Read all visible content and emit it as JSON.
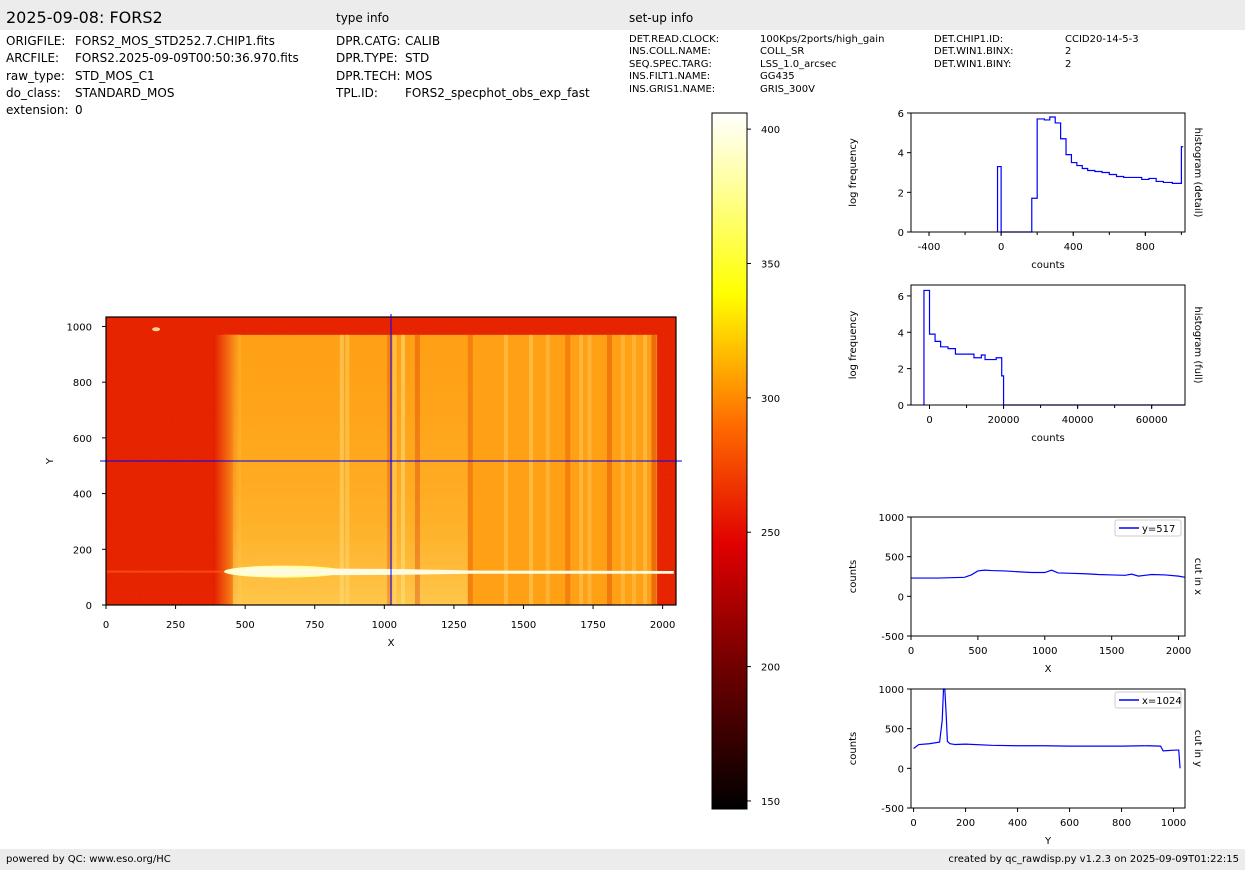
{
  "header": {
    "title": "2025-09-08: FORS2",
    "type_info_label": "type info",
    "setup_info_label": "set-up info"
  },
  "file_info": [
    {
      "key": "ORIGFILE:",
      "value": "FORS2_MOS_STD252.7.CHIP1.fits"
    },
    {
      "key": "ARCFILE:",
      "value": "FORS2.2025-09-09T00:50:36.970.fits"
    },
    {
      "key": "raw_type:",
      "value": "STD_MOS_C1"
    },
    {
      "key": "do_class:",
      "value": "STANDARD_MOS"
    },
    {
      "key": "extension:",
      "value": "0"
    }
  ],
  "type_info": [
    {
      "key": "DPR.CATG:",
      "value": "CALIB"
    },
    {
      "key": "DPR.TYPE:",
      "value": "STD"
    },
    {
      "key": "DPR.TECH:",
      "value": "MOS"
    },
    {
      "key": "TPL.ID:",
      "value": "FORS2_specphot_obs_exp_fast"
    }
  ],
  "setup_info_left": [
    {
      "key": "DET.READ.CLOCK:",
      "value": "100Kps/2ports/high_gain"
    },
    {
      "key": "INS.COLL.NAME:",
      "value": "COLL_SR"
    },
    {
      "key": "SEQ.SPEC.TARG:",
      "value": "LSS_1.0_arcsec"
    },
    {
      "key": "INS.FILT1.NAME:",
      "value": "GG435"
    },
    {
      "key": "INS.GRIS1.NAME:",
      "value": "GRIS_300V"
    }
  ],
  "setup_info_right": [
    {
      "key": "DET.CHIP1.ID:",
      "value": "CCID20-14-5-3"
    },
    {
      "key": "DET.WIN1.BINX:",
      "value": "2"
    },
    {
      "key": "DET.WIN1.BINY:",
      "value": "2"
    }
  ],
  "footer": {
    "left": "powered by QC: www.eso.org/HC",
    "right": "created by qc_rawdisp.py v1.2.3 on 2025-09-09T01:22:15"
  },
  "colors": {
    "line": "#0000ff",
    "bar_bg": "#ececec",
    "image_bg": "#e41a00",
    "image_bright": "#ffd040"
  },
  "chart_data": [
    {
      "type": "heatmap",
      "id": "image",
      "xlabel": "X",
      "ylabel": "Y",
      "xlim": [
        0,
        2048
      ],
      "ylim": [
        0,
        1034
      ],
      "xticks": [
        0,
        250,
        500,
        750,
        1000,
        1250,
        1500,
        1750,
        2000
      ],
      "yticks": [
        0,
        200,
        400,
        600,
        800,
        1000
      ],
      "cut_x": 1024,
      "cut_y": 517,
      "colormap": "hot",
      "colorbar": {
        "ticks": [
          150,
          200,
          250,
          300,
          350,
          400
        ],
        "range": [
          147,
          406
        ]
      }
    },
    {
      "type": "line",
      "id": "hist_detail",
      "xlabel": "counts",
      "ylabel": "log frequency",
      "side_label": "histogram (detail)",
      "xlim": [
        -500,
        1020
      ],
      "ylim": [
        0,
        6
      ],
      "xticks": [
        -400,
        0,
        400,
        800
      ],
      "yticks": [
        0,
        2,
        4,
        6
      ],
      "x": [
        -20,
        0,
        170,
        200,
        240,
        270,
        300,
        330,
        360,
        390,
        420,
        450,
        480,
        520,
        560,
        600,
        640,
        680,
        720,
        780,
        820,
        860,
        900,
        950,
        1000,
        1010
      ],
      "y": [
        3.3,
        0,
        1.7,
        5.7,
        5.65,
        5.8,
        5.5,
        4.7,
        3.9,
        3.5,
        3.35,
        3.2,
        3.1,
        3.05,
        3.0,
        2.9,
        2.8,
        2.75,
        2.75,
        2.65,
        2.7,
        2.55,
        2.5,
        2.45,
        4.3,
        4.3
      ]
    },
    {
      "type": "line",
      "id": "hist_full",
      "xlabel": "counts",
      "ylabel": "log frequency",
      "side_label": "histogram (full)",
      "xlim": [
        -5000,
        69000
      ],
      "ylim": [
        0,
        6.6
      ],
      "xticks": [
        0,
        20000,
        40000,
        60000
      ],
      "yticks": [
        0,
        2,
        4,
        6
      ],
      "x": [
        -1500,
        0,
        1500,
        3000,
        5000,
        7000,
        9000,
        12000,
        14000,
        15000,
        17000,
        18000,
        19500,
        20000,
        69000
      ],
      "y": [
        6.3,
        3.9,
        3.5,
        3.2,
        3.1,
        2.8,
        2.8,
        2.6,
        2.75,
        2.5,
        2.5,
        2.6,
        1.6,
        0,
        0
      ]
    },
    {
      "type": "line",
      "id": "cut_x",
      "xlabel": "X",
      "ylabel": "counts",
      "side_label": "cut in x",
      "legend": "y=517",
      "xlim": [
        0,
        2048
      ],
      "ylim": [
        -500,
        1000
      ],
      "xticks": [
        0,
        500,
        1000,
        1500,
        2000
      ],
      "yticks": [
        -500,
        0,
        500,
        1000
      ],
      "x": [
        0,
        100,
        200,
        300,
        400,
        450,
        500,
        550,
        600,
        700,
        800,
        900,
        1000,
        1050,
        1100,
        1200,
        1300,
        1400,
        1500,
        1600,
        1650,
        1700,
        1800,
        1900,
        2000,
        2048
      ],
      "y": [
        230,
        230,
        230,
        235,
        240,
        270,
        320,
        330,
        325,
        320,
        310,
        300,
        300,
        330,
        295,
        290,
        285,
        275,
        270,
        265,
        280,
        255,
        275,
        270,
        255,
        240
      ]
    },
    {
      "type": "line",
      "id": "cut_y",
      "xlabel": "Y",
      "ylabel": "counts",
      "side_label": "cut in y",
      "legend": "x=1024",
      "xlim": [
        -10,
        1044
      ],
      "ylim": [
        -500,
        1000
      ],
      "xticks": [
        0,
        200,
        400,
        600,
        800,
        1000
      ],
      "yticks": [
        -500,
        0,
        500,
        1000
      ],
      "x": [
        0,
        20,
        60,
        100,
        110,
        115,
        120,
        125,
        130,
        140,
        160,
        200,
        300,
        400,
        500,
        600,
        700,
        800,
        900,
        950,
        960,
        1010,
        1020,
        1025
      ],
      "y": [
        250,
        300,
        310,
        330,
        600,
        1000,
        1000,
        700,
        340,
        310,
        300,
        305,
        290,
        285,
        285,
        280,
        280,
        280,
        285,
        280,
        220,
        230,
        230,
        0
      ]
    }
  ]
}
